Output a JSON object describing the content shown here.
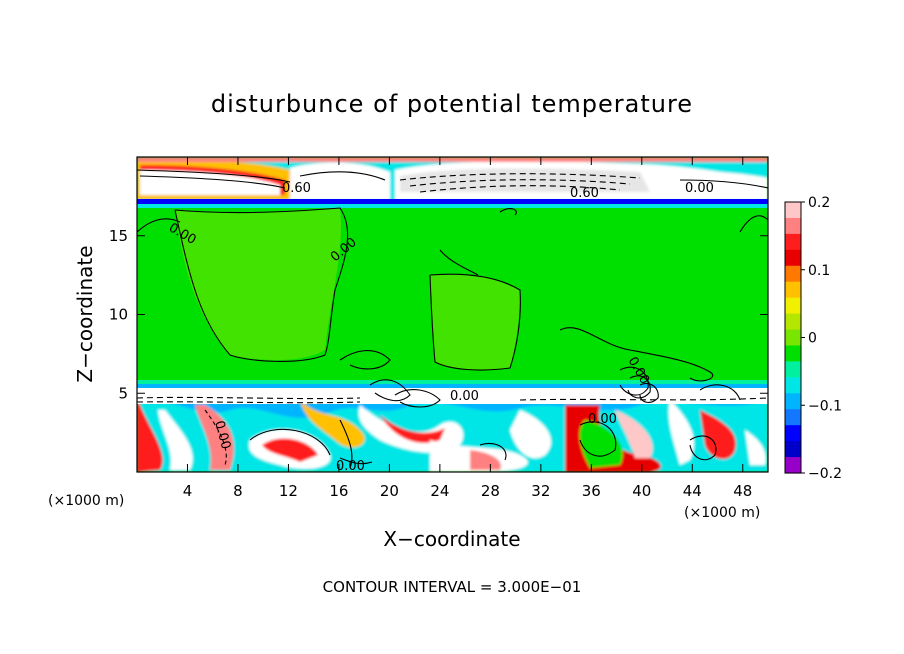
{
  "chart_data": {
    "type": "heatmap",
    "title": "disturbunce of potential temperature",
    "xlabel": "X−coordinate",
    "ylabel": "Z−coordinate",
    "x_unit": "(×1000 m)",
    "y_unit": "(×1000 m)",
    "xlim": [
      0,
      50
    ],
    "ylim": [
      0,
      20
    ],
    "x_ticks": [
      "4",
      "8",
      "12",
      "16",
      "20",
      "24",
      "28",
      "32",
      "36",
      "40",
      "44",
      "48"
    ],
    "y_ticks": [
      "5",
      "10",
      "15"
    ],
    "colorbar": {
      "range": [
        -0.2,
        0.2
      ],
      "tick_labels": [
        "0.2",
        "0.1",
        "0",
        "−0.1",
        "−0.2"
      ],
      "colors": [
        "#ffc8c8",
        "#ff8080",
        "#ff1e1e",
        "#e80000",
        "#ff7800",
        "#ffc000",
        "#f0f000",
        "#b4e600",
        "#78e600",
        "#00e000",
        "#00f0a0",
        "#00e6e6",
        "#00b4ff",
        "#1478ff",
        "#0000ff",
        "#0000c8",
        "#9600c8"
      ]
    },
    "contour_labels": [
      "0.60",
      "0.60",
      "0.00",
      "0.00",
      "0.00",
      "0.00",
      "0.00",
      "0.00",
      "0.00",
      "0.00"
    ],
    "footer": "CONTOUR INTERVAL = 3.000E−01",
    "grid": false,
    "legend": "colorbar right"
  }
}
